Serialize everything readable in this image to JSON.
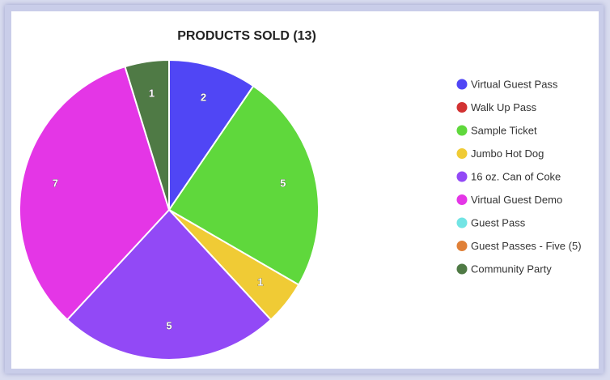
{
  "chart_data": {
    "type": "pie",
    "title": "PRODUCTS SOLD (13)",
    "categories": [
      "Virtual Guest Pass",
      "Walk Up Pass",
      "Sample Ticket",
      "Jumbo Hot Dog",
      "16 oz. Can of Coke",
      "Virtual Guest Demo",
      "Guest Pass",
      "Guest Passes - Five (5)",
      "Community Party"
    ],
    "values": [
      2,
      0,
      5,
      1,
      5,
      7,
      0,
      0,
      1
    ],
    "colors": [
      "#5046f5",
      "#d23232",
      "#5fd83c",
      "#f0cb35",
      "#9249f6",
      "#e436e6",
      "#72e4e4",
      "#e08038",
      "#4f7a45"
    ],
    "legend": "right"
  }
}
